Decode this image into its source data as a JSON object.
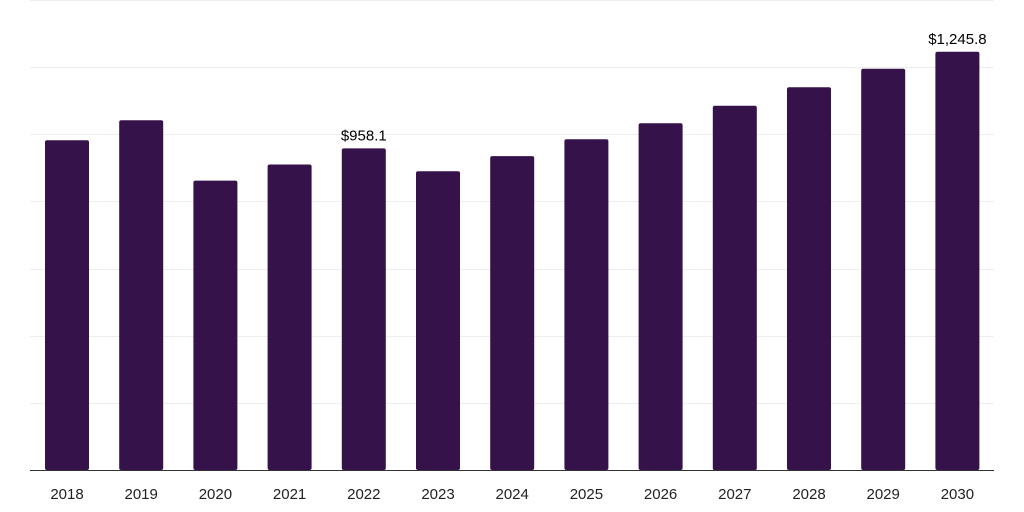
{
  "chart_data": {
    "type": "bar",
    "title": "",
    "xlabel": "",
    "ylabel": "",
    "categories": [
      "2018",
      "2019",
      "2020",
      "2021",
      "2022",
      "2023",
      "2024",
      "2025",
      "2026",
      "2027",
      "2028",
      "2029",
      "2030"
    ],
    "values": [
      982,
      1042,
      862,
      910,
      958.1,
      890,
      935,
      985,
      1033,
      1085,
      1140,
      1195,
      1245.8
    ],
    "data_labels": [
      {
        "index": 4,
        "text": "$958.1"
      },
      {
        "index": 12,
        "text": "$1,245.8"
      }
    ],
    "ylim": [
      0,
      1400
    ],
    "grid_step": 200,
    "grid": true,
    "legend": "none",
    "bar_color": "#36124a",
    "axis_color": "#333333",
    "grid_color": "#eeeeee"
  }
}
